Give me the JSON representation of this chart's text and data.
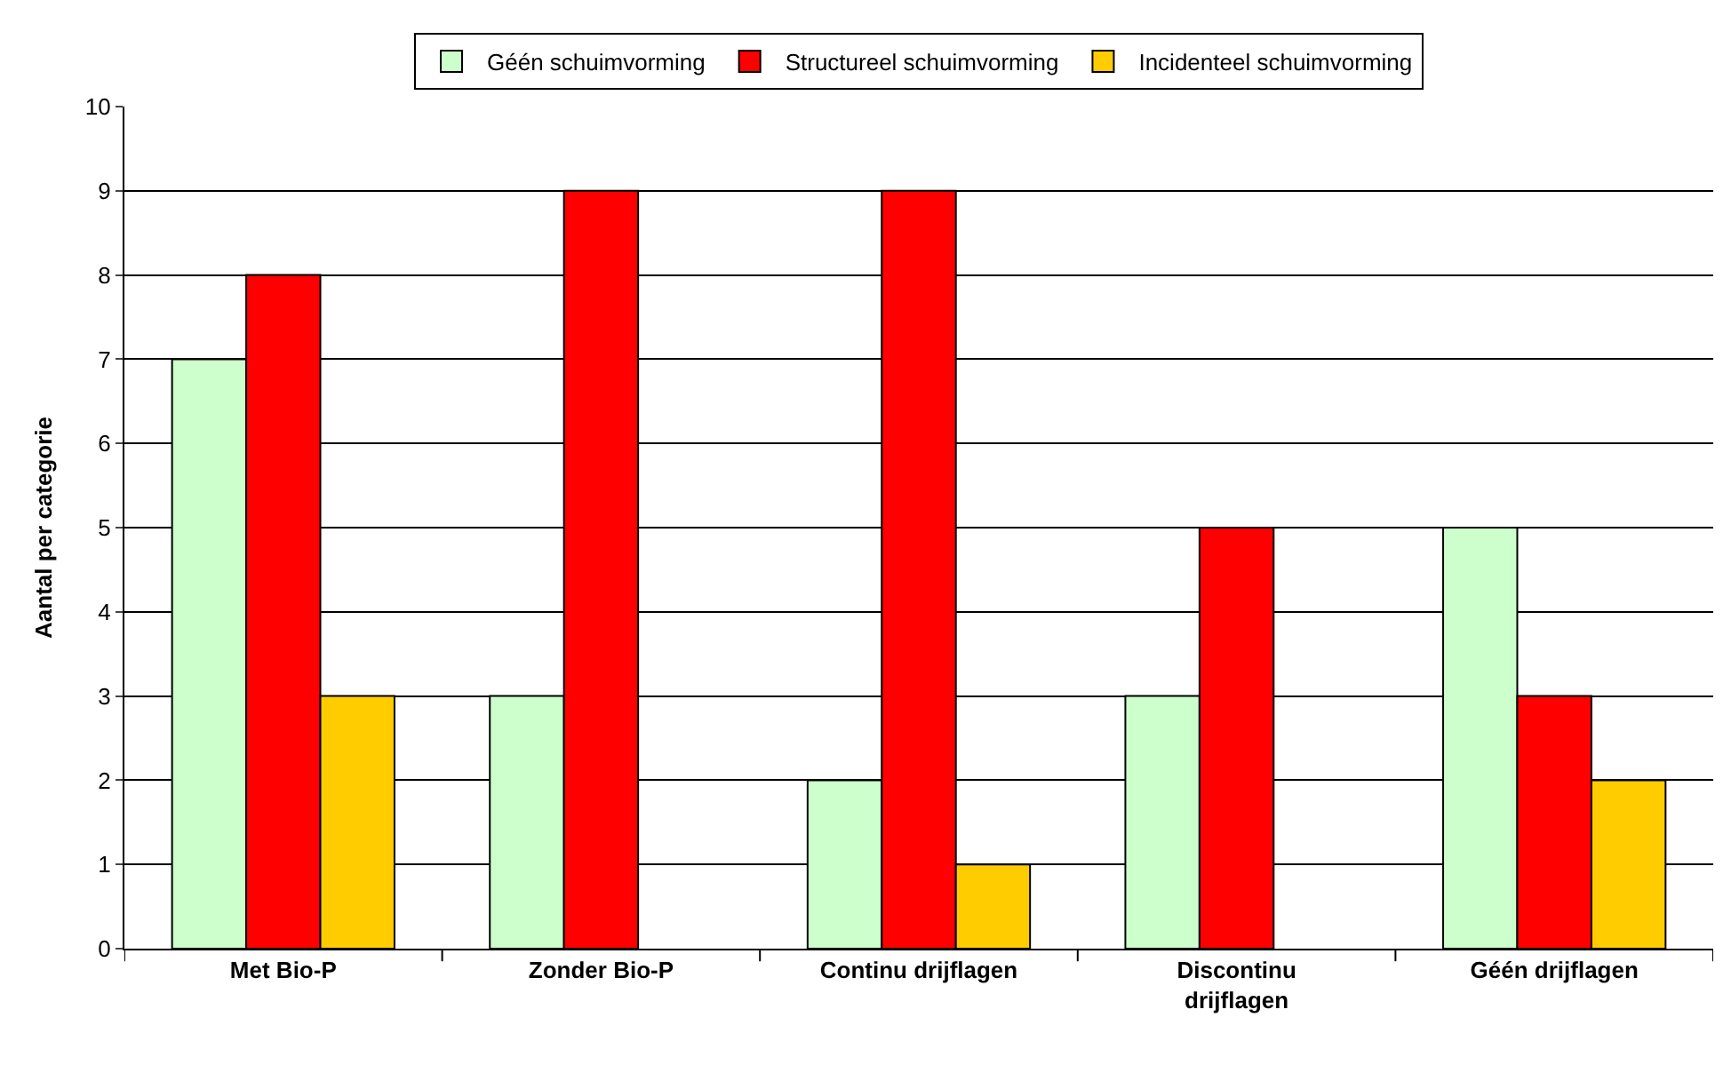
{
  "chart_data": {
    "type": "bar",
    "ylabel": "Aantal per categorie",
    "categories": [
      "Met Bio-P",
      "Zonder Bio-P",
      "Continu drijflagen",
      "Discontinu drijflagen",
      "Géén drijflagen"
    ],
    "series": [
      {
        "name": "Géén schuimvorming",
        "color": "#ccffcc",
        "values": [
          7,
          3,
          2,
          3,
          5
        ]
      },
      {
        "name": "Structureel schuimvorming",
        "color": "#ff0000",
        "values": [
          8,
          9,
          9,
          5,
          3
        ]
      },
      {
        "name": "Incidenteel schuimvorming",
        "color": "#ffcc00",
        "values": [
          3,
          null,
          1,
          null,
          2
        ]
      }
    ],
    "ylim": [
      0,
      10
    ],
    "yticks": [
      0,
      1,
      2,
      3,
      4,
      5,
      6,
      7,
      8,
      9,
      10
    ],
    "grid": "y",
    "legend": "top"
  }
}
